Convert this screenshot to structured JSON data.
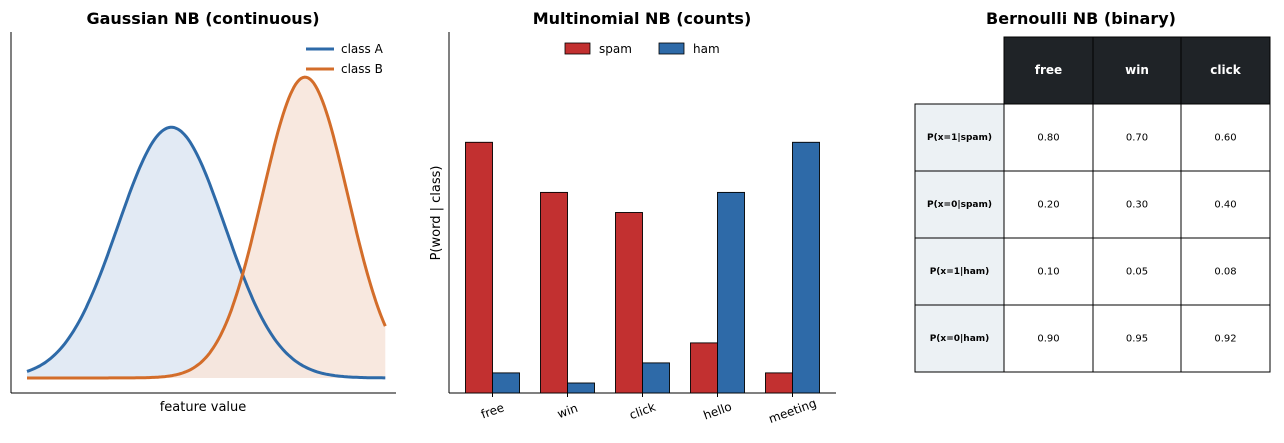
{
  "chart_data": [
    {
      "type": "line",
      "title": "Gaussian NB (continuous)",
      "xlabel": "feature value",
      "ylabel": "",
      "legend_position": "top-right",
      "ticks_visible": false,
      "fill_under_curves": true,
      "series": [
        {
          "name": "class A",
          "color": "#2e6aa8",
          "fill": "#dfe8f3",
          "mean": -1.0,
          "std": 1.0,
          "peak": 1.0
        },
        {
          "name": "class B",
          "color": "#d36d2a",
          "fill": "#f7e6dc",
          "mean": 1.5,
          "std": 0.8,
          "peak": 1.2
        }
      ],
      "xlim": [
        -4.0,
        3.2
      ],
      "ylim": [
        -0.06,
        1.38
      ]
    },
    {
      "type": "bar",
      "title": "Multinomial NB (counts)",
      "xlabel": "",
      "ylabel": "P(word | class)",
      "legend_position": "top-center",
      "categories": [
        "free",
        "win",
        "click",
        "hello",
        "meeting"
      ],
      "series": [
        {
          "name": "spam",
          "color": "#c23030",
          "values": [
            0.25,
            0.2,
            0.18,
            0.05,
            0.02
          ]
        },
        {
          "name": "ham",
          "color": "#2e6aa8",
          "values": [
            0.02,
            0.01,
            0.03,
            0.2,
            0.25
          ]
        }
      ],
      "ylim": [
        0,
        0.36
      ]
    },
    {
      "type": "table",
      "title": "Bernoulli NB (binary)",
      "header_color": "#1f2327",
      "row_label_color": "#ecf1f4",
      "columns": [
        "free",
        "win",
        "click"
      ],
      "rows": [
        {
          "label": "P(x=1|spam)",
          "values": [
            "0.80",
            "0.70",
            "0.60"
          ]
        },
        {
          "label": "P(x=0|spam)",
          "values": [
            "0.20",
            "0.30",
            "0.40"
          ]
        },
        {
          "label": "P(x=1|ham)",
          "values": [
            "0.10",
            "0.05",
            "0.08"
          ]
        },
        {
          "label": "P(x=0|ham)",
          "values": [
            "0.90",
            "0.95",
            "0.92"
          ]
        }
      ]
    }
  ]
}
